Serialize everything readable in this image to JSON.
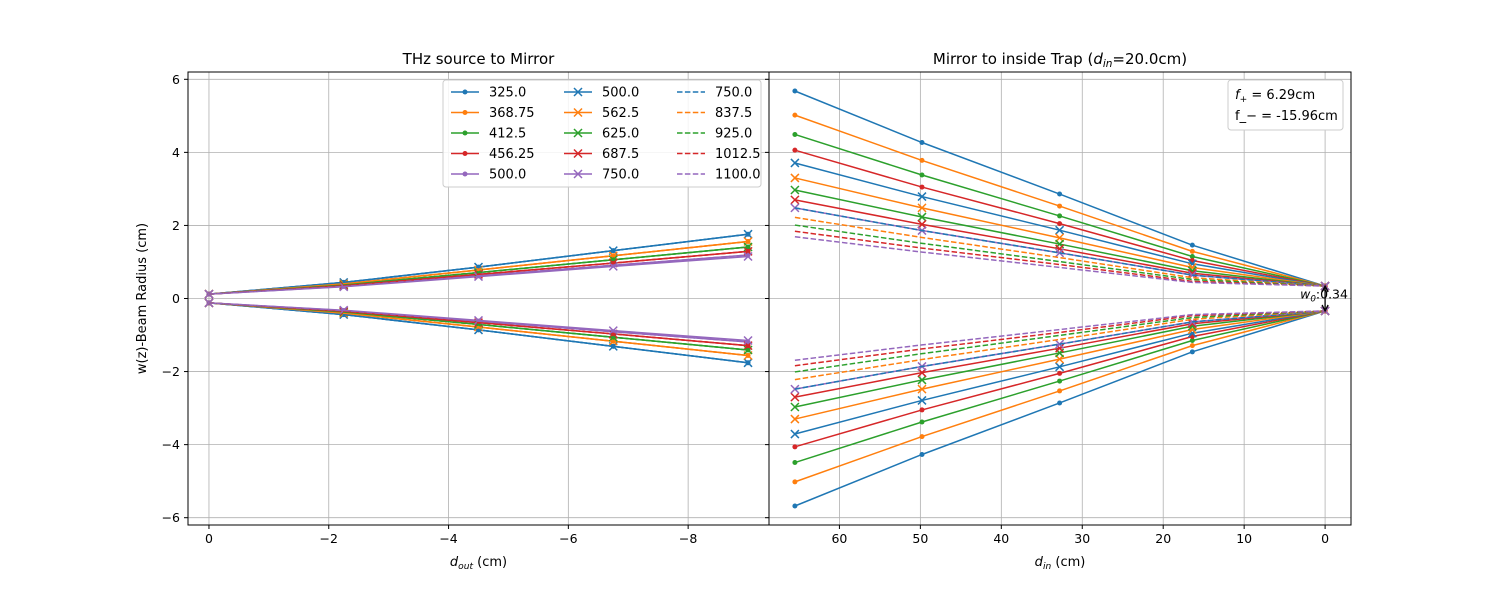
{
  "chart_data": [
    {
      "type": "line",
      "title": "THz source to Mirror",
      "xlabel": "d_out (cm)",
      "ylabel": "w(z)-Beam Radius (cm)",
      "xlim": [
        0.35,
        -9.35
      ],
      "ylim": [
        -6.2,
        6.2
      ],
      "xticks": [
        0,
        -2,
        -4,
        -6,
        -8
      ],
      "yticks": [
        -6,
        -4,
        -2,
        0,
        2,
        4,
        6
      ],
      "xtick_labels": [
        "0",
        "−2",
        "−4",
        "−6",
        "−8"
      ],
      "ytick_labels": [
        "−6",
        "−4",
        "−2",
        "0",
        "2",
        "4",
        "6"
      ],
      "grid": true,
      "legend_position": "top-right",
      "x": [
        0,
        -2.25,
        -4.5,
        -6.75,
        -9.0
      ],
      "series": [
        {
          "name": "325.0",
          "color": "#1f77b4",
          "marker": "dot",
          "dash": false,
          "values": [
            0.12,
            0.44,
            0.86,
            1.31,
            1.76
          ]
        },
        {
          "name": "368.75",
          "color": "#ff7f0e",
          "marker": "dot",
          "dash": false,
          "values": [
            0.12,
            0.4,
            0.78,
            1.17,
            1.56
          ]
        },
        {
          "name": "412.5",
          "color": "#2ca02c",
          "marker": "dot",
          "dash": false,
          "values": [
            0.12,
            0.37,
            0.71,
            1.06,
            1.41
          ]
        },
        {
          "name": "456.25",
          "color": "#d62728",
          "marker": "dot",
          "dash": false,
          "values": [
            0.12,
            0.35,
            0.66,
            0.97,
            1.29
          ]
        },
        {
          "name": "500.0",
          "color": "#9467bd",
          "marker": "dot",
          "dash": false,
          "values": [
            0.12,
            0.33,
            0.62,
            0.91,
            1.19
          ]
        },
        {
          "name": "500.0",
          "color": "#1f77b4",
          "marker": "x",
          "dash": false,
          "values": [
            0.12,
            0.44,
            0.86,
            1.31,
            1.76
          ]
        },
        {
          "name": "562.5",
          "color": "#ff7f0e",
          "marker": "x",
          "dash": false,
          "values": [
            0.12,
            0.4,
            0.78,
            1.17,
            1.56
          ]
        },
        {
          "name": "625.0",
          "color": "#2ca02c",
          "marker": "x",
          "dash": false,
          "values": [
            0.12,
            0.37,
            0.71,
            1.06,
            1.41
          ]
        },
        {
          "name": "687.5",
          "color": "#d62728",
          "marker": "x",
          "dash": false,
          "values": [
            0.12,
            0.35,
            0.66,
            0.97,
            1.29
          ]
        },
        {
          "name": "750.0",
          "color": "#9467bd",
          "marker": "x",
          "dash": false,
          "values": [
            0.12,
            0.32,
            0.6,
            0.88,
            1.15
          ]
        },
        {
          "name": "750.0",
          "color": "#1f77b4",
          "marker": "none",
          "dash": true,
          "values": [
            0.12,
            0.44,
            0.86,
            1.31,
            1.76
          ]
        },
        {
          "name": "837.5",
          "color": "#ff7f0e",
          "marker": "none",
          "dash": true,
          "values": [
            0.12,
            0.4,
            0.78,
            1.17,
            1.56
          ]
        },
        {
          "name": "925.0",
          "color": "#2ca02c",
          "marker": "none",
          "dash": true,
          "values": [
            0.12,
            0.37,
            0.71,
            1.06,
            1.41
          ]
        },
        {
          "name": "1012.5",
          "color": "#d62728",
          "marker": "none",
          "dash": true,
          "values": [
            0.12,
            0.35,
            0.66,
            0.97,
            1.29
          ]
        },
        {
          "name": "1100.0",
          "color": "#9467bd",
          "marker": "none",
          "dash": true,
          "values": [
            0.12,
            0.33,
            0.62,
            0.91,
            1.19
          ]
        }
      ],
      "mirrored": true
    },
    {
      "type": "line",
      "title": "Mirror to inside Trap (d_in=20.0cm)",
      "xlabel": "d_in (cm)",
      "ylabel": "",
      "xlim": [
        68.7,
        -3.2
      ],
      "ylim": [
        -6.2,
        6.2
      ],
      "xticks": [
        60,
        50,
        40,
        30,
        20,
        10,
        0
      ],
      "yticks": [
        -6,
        -4,
        -2,
        0,
        2,
        4,
        6
      ],
      "xtick_labels": [
        "60",
        "50",
        "40",
        "30",
        "20",
        "10",
        "0"
      ],
      "grid": true,
      "x": [
        65.5,
        49.8,
        32.8,
        16.4,
        0
      ],
      "series": [
        {
          "name": "325.0",
          "color": "#1f77b4",
          "marker": "dot",
          "dash": false,
          "values": [
            5.68,
            4.27,
            2.86,
            1.46,
            0.34
          ]
        },
        {
          "name": "368.75",
          "color": "#ff7f0e",
          "marker": "dot",
          "dash": false,
          "values": [
            5.02,
            3.78,
            2.53,
            1.29,
            0.34
          ]
        },
        {
          "name": "412.5",
          "color": "#2ca02c",
          "marker": "dot",
          "dash": false,
          "values": [
            4.49,
            3.38,
            2.26,
            1.15,
            0.34
          ]
        },
        {
          "name": "456.25",
          "color": "#d62728",
          "marker": "dot",
          "dash": false,
          "values": [
            4.06,
            3.05,
            2.05,
            1.04,
            0.34
          ]
        },
        {
          "name": "500.0",
          "color": "#1f77b4",
          "marker": "x",
          "dash": false,
          "values": [
            3.71,
            2.79,
            1.87,
            0.95,
            0.34
          ]
        },
        {
          "name": "562.5",
          "color": "#ff7f0e",
          "marker": "x",
          "dash": false,
          "values": [
            3.3,
            2.48,
            1.66,
            0.85,
            0.34
          ]
        },
        {
          "name": "625.0",
          "color": "#2ca02c",
          "marker": "x",
          "dash": false,
          "values": [
            2.97,
            2.23,
            1.49,
            0.76,
            0.34
          ]
        },
        {
          "name": "687.5",
          "color": "#d62728",
          "marker": "x",
          "dash": false,
          "values": [
            2.7,
            2.03,
            1.36,
            0.69,
            0.34
          ]
        },
        {
          "name": "750.0",
          "color": "#9467bd",
          "marker": "x",
          "dash": false,
          "values": [
            2.48,
            1.86,
            1.25,
            0.64,
            0.34
          ]
        },
        {
          "name": "750.0",
          "color": "#1f77b4",
          "marker": "none",
          "dash": true,
          "values": [
            2.48,
            1.86,
            1.25,
            0.64,
            0.34
          ]
        },
        {
          "name": "837.5",
          "color": "#ff7f0e",
          "marker": "none",
          "dash": true,
          "values": [
            2.22,
            1.67,
            1.12,
            0.57,
            0.34
          ]
        },
        {
          "name": "925.0",
          "color": "#2ca02c",
          "marker": "none",
          "dash": true,
          "values": [
            2.01,
            1.51,
            1.01,
            0.52,
            0.34
          ]
        },
        {
          "name": "1012.5",
          "color": "#d62728",
          "marker": "none",
          "dash": true,
          "values": [
            1.84,
            1.38,
            0.93,
            0.47,
            0.34
          ]
        },
        {
          "name": "1100.0",
          "color": "#9467bd",
          "marker": "none",
          "dash": true,
          "values": [
            1.69,
            1.27,
            0.85,
            0.44,
            0.34
          ]
        }
      ],
      "mirrored": true,
      "info_box": [
        "f_+ = 6.29cm",
        "f_- = -15.96cm"
      ],
      "annotation": "w_0:0.34"
    }
  ]
}
